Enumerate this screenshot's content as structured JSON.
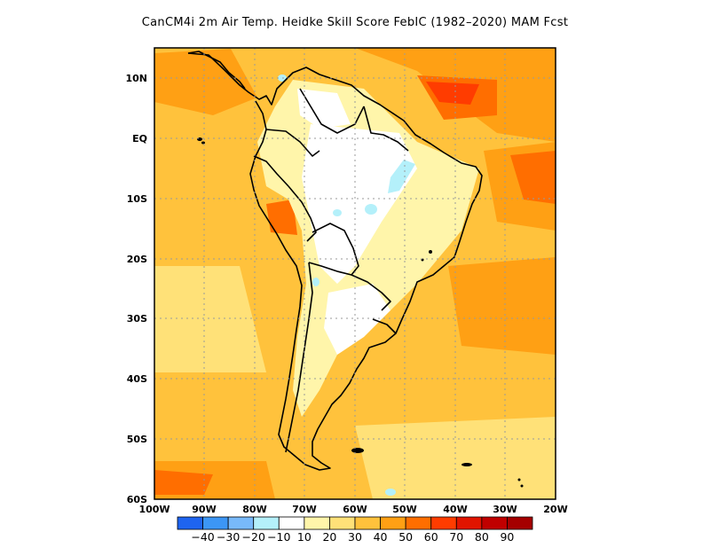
{
  "title": "CanCM4i  2m Air Temp. Heidke Skill Score FebIC (1982–2020) MAM Fcst",
  "map": {
    "region": "South America",
    "lon_range": [
      -100,
      -20
    ],
    "lat_range": [
      -60,
      15
    ],
    "grid": "dotted",
    "lat_labels": [
      "10N",
      "EQ",
      "10S",
      "20S",
      "30S",
      "40S",
      "50S",
      "60S"
    ],
    "lon_labels": [
      "100W",
      "90W",
      "80W",
      "70W",
      "60W",
      "50W",
      "40W",
      "30W",
      "20W"
    ]
  },
  "colorbar": {
    "colors": [
      "#1e64f0",
      "#3c96f5",
      "#78b9fa",
      "#b4f0fa",
      "#ffffff",
      "#fff5aa",
      "#ffe178",
      "#ffc23c",
      "#ffa014",
      "#ff6e00",
      "#ff3c00",
      "#e11400",
      "#c00000",
      "#a50000"
    ],
    "tick_labels": [
      "-40",
      "-30",
      "-20",
      "-10",
      "10",
      "20",
      "30",
      "40",
      "50",
      "60",
      "70",
      "80",
      "90"
    ]
  }
}
